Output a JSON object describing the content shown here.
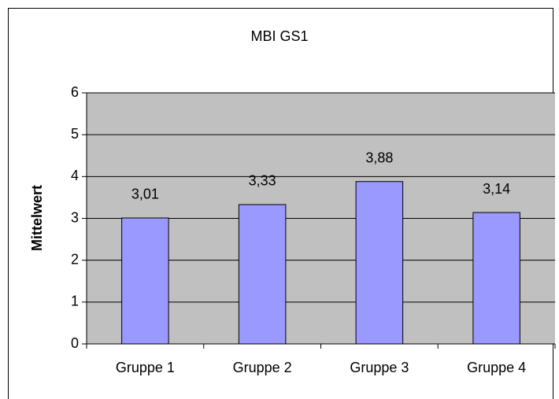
{
  "chart_data": {
    "type": "bar",
    "title": "MBI GS1",
    "y_label": "Mittelwert",
    "categories": [
      "Gruppe 1",
      "Gruppe 2",
      "Gruppe 3",
      "Gruppe 4"
    ],
    "values": [
      3.01,
      3.33,
      3.88,
      3.14
    ],
    "value_labels": [
      "3,01",
      "3,33",
      "3,88",
      "3,14"
    ],
    "color": "#9999ff",
    "plot_background": "#c0c0c0",
    "ylim": [
      0,
      6
    ],
    "yticks": [
      0,
      1,
      2,
      3,
      4,
      5,
      6
    ],
    "grid": true
  }
}
